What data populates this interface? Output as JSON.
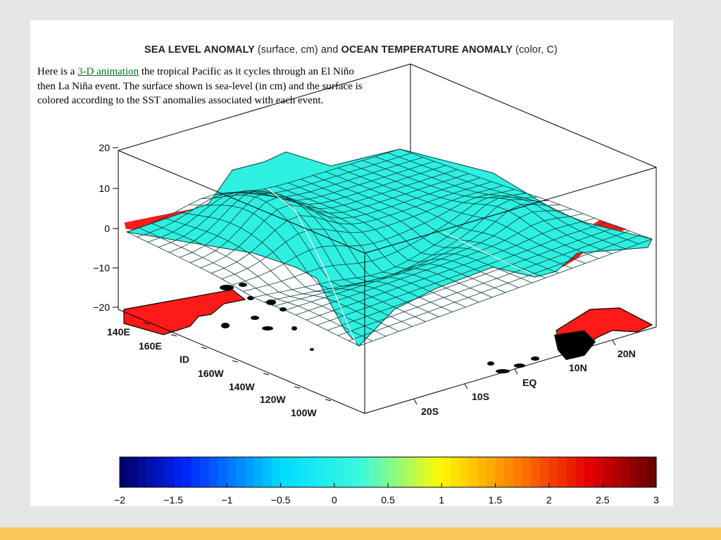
{
  "page": {
    "title_main": "SEA LEVEL ANOMALY",
    "title_paren1": "(surface, cm)",
    "title_and": "and",
    "title_second": "OCEAN TEMPERATURE ANOMALY",
    "title_paren2": "(color, C)"
  },
  "caption": {
    "before_link": "Here is a ",
    "link_text": "3-D animation",
    "after_link": " the tropical Pacific as it cycles through an El Niño then La Niña event. The surface shown is sea-level (in cm) and the surface is colored according to the SST anomalies associated with each event."
  },
  "figure": {
    "z_ticks": [
      "20",
      "10",
      "0",
      "−10",
      "−20"
    ],
    "lon_ticks": [
      "140E",
      "160E",
      "ID",
      "160W",
      "140W",
      "120W",
      "100W"
    ],
    "lat_ticks": [
      "20S",
      "10S",
      "EQ",
      "10N",
      "20N"
    ],
    "colorbar_ticks": [
      "−2",
      "−1.5",
      "−1",
      "−0.5",
      "0",
      "0.5",
      "1",
      "1.5",
      "2",
      "2.5",
      "3"
    ],
    "colorbar_range": [
      -2,
      3
    ],
    "colors": {
      "surface": "#2ef0e0",
      "land_warm": "#ff1a1a",
      "land_outline": "#000000",
      "mesh": "#0c3c3c"
    }
  }
}
